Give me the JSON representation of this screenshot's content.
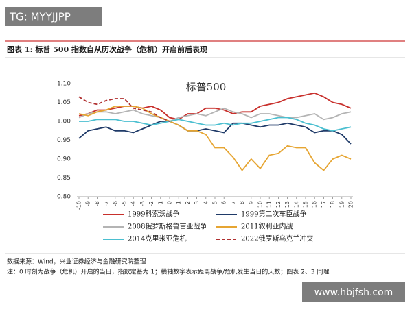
{
  "header": {
    "watermark": "TG: MYYJJPP",
    "figure_title": "图表 1:   标普 500 指数自从历次战争（危机）开启前后表现"
  },
  "chart_data": {
    "type": "line",
    "title": "标普500",
    "x": [
      -10,
      -9,
      -8,
      -7,
      -6,
      -5,
      -4,
      -3,
      -2,
      -1,
      0,
      1,
      2,
      3,
      4,
      5,
      6,
      7,
      8,
      9,
      10,
      11,
      12,
      13,
      14,
      15,
      16,
      17,
      18,
      19,
      20
    ],
    "xlim": [
      -10,
      20
    ],
    "ylim": [
      0.8,
      1.1
    ],
    "yticks": [
      {
        "value": 0.8,
        "label": "0.80"
      },
      0.85,
      {
        "value": 0.9,
        "label": "0.90"
      },
      0.95,
      {
        "value": 1.0,
        "label": "1.00"
      },
      1.05,
      {
        "value": 1.1,
        "label": "1.10"
      }
    ],
    "grid": false,
    "series": [
      {
        "name": "1999科索沃战争",
        "color": "#c8302c",
        "values": [
          1.015,
          1.02,
          1.03,
          1.03,
          1.035,
          1.04,
          1.04,
          1.035,
          1.04,
          1.03,
          1.01,
          1.005,
          1.02,
          1.02,
          1.035,
          1.035,
          1.03,
          1.02,
          1.025,
          1.025,
          1.04,
          1.045,
          1.05,
          1.06,
          1.065,
          1.07,
          1.075,
          1.065,
          1.05,
          1.045,
          1.035
        ]
      },
      {
        "name": "1999第二次车臣战争",
        "color": "#1f3a68",
        "values": [
          0.955,
          0.975,
          0.98,
          0.985,
          0.975,
          0.975,
          0.97,
          0.98,
          0.99,
          1.0,
          1.0,
          0.99,
          0.975,
          0.975,
          0.98,
          0.975,
          0.97,
          0.995,
          0.995,
          0.99,
          0.985,
          0.99,
          0.99,
          0.995,
          0.99,
          0.985,
          0.97,
          0.975,
          0.975,
          0.965,
          0.94
        ]
      },
      {
        "name": "2008俄罗斯格鲁吉亚战争",
        "color": "#b4b4b4",
        "values": [
          1.01,
          1.02,
          1.025,
          1.025,
          1.02,
          1.025,
          1.03,
          1.02,
          1.015,
          1.01,
          1.0,
          1.01,
          1.015,
          1.02,
          1.015,
          1.025,
          1.035,
          1.025,
          1.02,
          1.01,
          1.02,
          1.02,
          1.015,
          1.01,
          1.01,
          1.015,
          1.02,
          1.005,
          1.01,
          1.02,
          1.025
        ]
      },
      {
        "name": "2011叙利亚内战",
        "color": "#e6a532",
        "values": [
          1.02,
          1.015,
          1.025,
          1.03,
          1.04,
          1.04,
          1.04,
          1.035,
          1.02,
          1.01,
          1.0,
          0.99,
          0.975,
          0.975,
          0.965,
          0.93,
          0.93,
          0.905,
          0.87,
          0.9,
          0.875,
          0.91,
          0.915,
          0.935,
          0.93,
          0.93,
          0.89,
          0.87,
          0.9,
          0.91,
          0.9
        ]
      },
      {
        "name": "2014克里米亚危机",
        "color": "#4bbfd0",
        "values": [
          1.0,
          1.0,
          1.005,
          1.005,
          1.005,
          1.0,
          1.0,
          0.995,
          0.99,
          0.995,
          1.0,
          1.005,
          1.0,
          0.995,
          0.99,
          0.99,
          0.995,
          0.99,
          0.995,
          0.995,
          1.0,
          1.005,
          1.01,
          1.01,
          1.005,
          0.995,
          0.99,
          0.98,
          0.975,
          0.98,
          0.985
        ]
      },
      {
        "name": "2022俄罗斯乌克兰冲突",
        "color": "#b03030",
        "dashed": true,
        "values": [
          1.065,
          1.05,
          1.045,
          1.055,
          1.06,
          1.06,
          1.035,
          1.03,
          1.025,
          1.01,
          1.0,
          null,
          null,
          null,
          null,
          null,
          null,
          null,
          null,
          null,
          null,
          null,
          null,
          null,
          null,
          null,
          null,
          null,
          null,
          null,
          null
        ]
      }
    ]
  },
  "footer": {
    "source": "数据来源：Wind，兴业证券经济与金融研究院整理",
    "note": "注：0 时刻为战争（危机）开启的当日，指数定基为 1；横轴数字表示距离战争/危机发生当日的天数；图表 2、3 同理",
    "site": "www.hbjfsh.com"
  }
}
